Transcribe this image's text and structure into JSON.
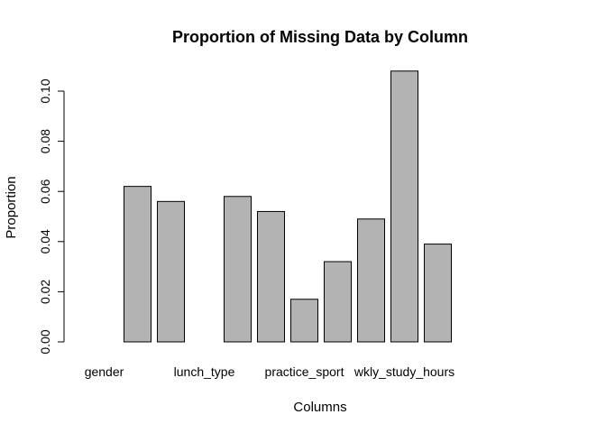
{
  "colors": {
    "bar_fill": "#b3b3b3",
    "bar_stroke": "#000000",
    "background": "#ffffff"
  },
  "chart_data": {
    "type": "bar",
    "title": "Proportion of Missing Data by Column",
    "xlabel": "Columns",
    "ylabel": "Proportion",
    "ylim": [
      0,
      0.1
    ],
    "yticks": [
      "0.00",
      "0.02",
      "0.04",
      "0.06",
      "0.08",
      "0.10"
    ],
    "ytick_values": [
      0,
      0.02,
      0.04,
      0.06,
      0.08,
      0.1
    ],
    "categories": [
      "gender",
      "",
      "",
      "lunch_type",
      "",
      "",
      "practice_sport",
      "",
      "",
      "wkly_study_hours",
      "",
      "",
      ""
    ],
    "values": [
      0,
      0.062,
      0.056,
      0,
      0.058,
      0.052,
      0.017,
      0.032,
      0.049,
      0.108,
      0.039,
      0,
      0
    ],
    "grid": false,
    "legend": "none"
  }
}
